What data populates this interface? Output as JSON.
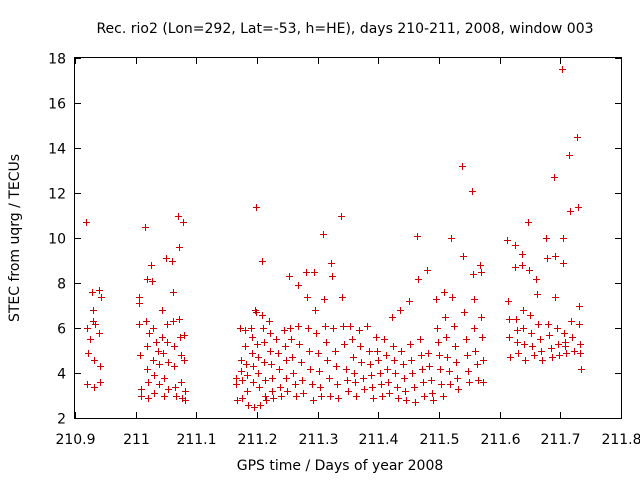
{
  "chart_data": {
    "type": "scatter",
    "title": "Rec. rio2 (Lon=292, Lat=-53, h=HE), days 210-211, 2008, window 003",
    "xlabel": "GPS time / Days of year 2008",
    "ylabel": "STEC from uqrg / TECUs",
    "xlim": [
      210.9,
      211.8
    ],
    "ylim": [
      2,
      18
    ],
    "x_ticks": [
      "210.9",
      "211",
      "211.1",
      "211.2",
      "211.3",
      "211.4",
      "211.5",
      "211.6",
      "211.7",
      "211.8"
    ],
    "y_ticks": [
      "2",
      "4",
      "6",
      "8",
      "10",
      "12",
      "14",
      "16",
      "18"
    ],
    "marker": "+",
    "color": "#cc0000",
    "points": [
      [
        210.918,
        10.7
      ],
      [
        210.92,
        6.0
      ],
      [
        210.921,
        4.9
      ],
      [
        210.92,
        3.5
      ],
      [
        210.924,
        5.5
      ],
      [
        210.928,
        7.6
      ],
      [
        210.929,
        6.8
      ],
      [
        210.93,
        6.3
      ],
      [
        210.931,
        4.6
      ],
      [
        210.932,
        3.4
      ],
      [
        210.933,
        6.2
      ],
      [
        210.94,
        7.7
      ],
      [
        210.94,
        5.8
      ],
      [
        210.941,
        4.3
      ],
      [
        210.942,
        3.6
      ],
      [
        210.943,
        7.4
      ],
      [
        211.005,
        7.4
      ],
      [
        211.006,
        6.2
      ],
      [
        211.007,
        4.8
      ],
      [
        211.008,
        3.3
      ],
      [
        211.009,
        3.0
      ],
      [
        211.006,
        7.1
      ],
      [
        211.016,
        10.5
      ],
      [
        211.018,
        8.2
      ],
      [
        211.017,
        6.3
      ],
      [
        211.018,
        5.2
      ],
      [
        211.019,
        4.2
      ],
      [
        211.02,
        3.6
      ],
      [
        211.021,
        2.9
      ],
      [
        211.022,
        5.8
      ],
      [
        211.026,
        8.8
      ],
      [
        211.027,
        8.1
      ],
      [
        211.028,
        6.0
      ],
      [
        211.029,
        4.6
      ],
      [
        211.03,
        3.9
      ],
      [
        211.031,
        3.1
      ],
      [
        211.033,
        5.4
      ],
      [
        211.036,
        5.0
      ],
      [
        211.038,
        4.4
      ],
      [
        211.039,
        3.5
      ],
      [
        211.043,
        6.8
      ],
      [
        211.044,
        5.6
      ],
      [
        211.045,
        4.9
      ],
      [
        211.046,
        3.8
      ],
      [
        211.047,
        3.0
      ],
      [
        211.05,
        9.1
      ],
      [
        211.051,
        6.2
      ],
      [
        211.052,
        5.4
      ],
      [
        211.053,
        4.5
      ],
      [
        211.054,
        3.3
      ],
      [
        211.06,
        9.0
      ],
      [
        211.061,
        7.6
      ],
      [
        211.062,
        6.3
      ],
      [
        211.063,
        5.2
      ],
      [
        211.064,
        4.3
      ],
      [
        211.065,
        3.4
      ],
      [
        211.066,
        3.0
      ],
      [
        211.07,
        11.0
      ],
      [
        211.071,
        9.6
      ],
      [
        211.072,
        6.4
      ],
      [
        211.073,
        5.6
      ],
      [
        211.074,
        4.8
      ],
      [
        211.075,
        3.6
      ],
      [
        211.076,
        2.9
      ],
      [
        211.078,
        10.7
      ],
      [
        211.079,
        5.7
      ],
      [
        211.08,
        4.6
      ],
      [
        211.081,
        3.2
      ],
      [
        211.082,
        2.8
      ],
      [
        211.165,
        3.8
      ],
      [
        211.166,
        3.5
      ],
      [
        211.167,
        2.8
      ],
      [
        211.172,
        6.0
      ],
      [
        211.173,
        4.6
      ],
      [
        211.174,
        4.1
      ],
      [
        211.175,
        3.7
      ],
      [
        211.176,
        2.9
      ],
      [
        211.18,
        5.9
      ],
      [
        211.181,
        5.2
      ],
      [
        211.182,
        4.4
      ],
      [
        211.183,
        3.9
      ],
      [
        211.184,
        3.2
      ],
      [
        211.185,
        2.6
      ],
      [
        211.19,
        6.0
      ],
      [
        211.191,
        5.6
      ],
      [
        211.192,
        4.9
      ],
      [
        211.193,
        4.3
      ],
      [
        211.194,
        3.6
      ],
      [
        211.195,
        2.5
      ],
      [
        211.196,
        6.8
      ],
      [
        211.198,
        11.4
      ],
      [
        211.199,
        6.7
      ],
      [
        211.2,
        5.3
      ],
      [
        211.201,
        4.7
      ],
      [
        211.202,
        4.0
      ],
      [
        211.203,
        3.4
      ],
      [
        211.205,
        2.6
      ],
      [
        211.208,
        9.0
      ],
      [
        211.209,
        6.6
      ],
      [
        211.21,
        6.0
      ],
      [
        211.211,
        5.4
      ],
      [
        211.212,
        4.5
      ],
      [
        211.213,
        3.7
      ],
      [
        211.214,
        3.0
      ],
      [
        211.215,
        2.8
      ],
      [
        211.22,
        6.3
      ],
      [
        211.221,
        5.8
      ],
      [
        211.222,
        5.0
      ],
      [
        211.223,
        4.4
      ],
      [
        211.224,
        3.8
      ],
      [
        211.225,
        3.2
      ],
      [
        211.226,
        2.9
      ],
      [
        211.232,
        5.5
      ],
      [
        211.234,
        4.9
      ],
      [
        211.236,
        4.2
      ],
      [
        211.238,
        3.4
      ],
      [
        211.24,
        3.0
      ],
      [
        211.245,
        5.9
      ],
      [
        211.246,
        5.2
      ],
      [
        211.247,
        4.6
      ],
      [
        211.248,
        3.8
      ],
      [
        211.249,
        3.2
      ],
      [
        211.252,
        8.3
      ],
      [
        211.254,
        6.0
      ],
      [
        211.256,
        5.5
      ],
      [
        211.258,
        4.7
      ],
      [
        211.26,
        4.0
      ],
      [
        211.262,
        3.5
      ],
      [
        211.264,
        3.0
      ],
      [
        211.267,
        7.9
      ],
      [
        211.268,
        6.1
      ],
      [
        211.27,
        5.3
      ],
      [
        211.272,
        4.5
      ],
      [
        211.274,
        3.7
      ],
      [
        211.276,
        3.1
      ],
      [
        211.28,
        8.5
      ],
      [
        211.282,
        7.4
      ],
      [
        211.284,
        6.0
      ],
      [
        211.286,
        5.0
      ],
      [
        211.288,
        4.2
      ],
      [
        211.29,
        3.5
      ],
      [
        211.292,
        2.8
      ],
      [
        211.294,
        8.5
      ],
      [
        211.296,
        6.8
      ],
      [
        211.298,
        5.8
      ],
      [
        211.3,
        4.9
      ],
      [
        211.302,
        4.1
      ],
      [
        211.304,
        3.4
      ],
      [
        211.305,
        3.0
      ],
      [
        211.308,
        10.2
      ],
      [
        211.31,
        7.3
      ],
      [
        211.312,
        6.1
      ],
      [
        211.314,
        5.4
      ],
      [
        211.316,
        4.6
      ],
      [
        211.318,
        3.8
      ],
      [
        211.32,
        3.0
      ],
      [
        211.322,
        8.9
      ],
      [
        211.324,
        8.3
      ],
      [
        211.326,
        6.0
      ],
      [
        211.328,
        5.0
      ],
      [
        211.33,
        4.3
      ],
      [
        211.332,
        3.5
      ],
      [
        211.334,
        2.9
      ],
      [
        211.338,
        11.0
      ],
      [
        211.34,
        7.4
      ],
      [
        211.342,
        6.1
      ],
      [
        211.344,
        5.3
      ],
      [
        211.346,
        4.2
      ],
      [
        211.348,
        3.7
      ],
      [
        211.35,
        3.2
      ],
      [
        211.354,
        6.1
      ],
      [
        211.356,
        5.5
      ],
      [
        211.358,
        4.7
      ],
      [
        211.36,
        4.0
      ],
      [
        211.362,
        3.6
      ],
      [
        211.364,
        3.0
      ],
      [
        211.368,
        5.9
      ],
      [
        211.37,
        5.2
      ],
      [
        211.372,
        4.5
      ],
      [
        211.374,
        3.8
      ],
      [
        211.376,
        3.3
      ],
      [
        211.382,
        6.1
      ],
      [
        211.384,
        5.0
      ],
      [
        211.386,
        4.4
      ],
      [
        211.388,
        3.9
      ],
      [
        211.39,
        3.4
      ],
      [
        211.392,
        2.9
      ],
      [
        211.396,
        5.6
      ],
      [
        211.398,
        5.0
      ],
      [
        211.4,
        4.6
      ],
      [
        211.402,
        4.0
      ],
      [
        211.404,
        3.5
      ],
      [
        211.406,
        3.0
      ],
      [
        211.41,
        5.5
      ],
      [
        211.412,
        4.8
      ],
      [
        211.414,
        4.2
      ],
      [
        211.416,
        3.6
      ],
      [
        211.418,
        3.1
      ],
      [
        211.422,
        6.5
      ],
      [
        211.424,
        5.2
      ],
      [
        211.426,
        4.6
      ],
      [
        211.428,
        4.0
      ],
      [
        211.43,
        3.4
      ],
      [
        211.432,
        2.9
      ],
      [
        211.436,
        6.8
      ],
      [
        211.438,
        5.0
      ],
      [
        211.44,
        4.4
      ],
      [
        211.442,
        3.8
      ],
      [
        211.444,
        3.2
      ],
      [
        211.446,
        2.8
      ],
      [
        211.45,
        7.2
      ],
      [
        211.452,
        5.3
      ],
      [
        211.454,
        4.6
      ],
      [
        211.456,
        4.0
      ],
      [
        211.458,
        3.4
      ],
      [
        211.46,
        2.7
      ],
      [
        211.464,
        10.1
      ],
      [
        211.466,
        8.2
      ],
      [
        211.468,
        5.5
      ],
      [
        211.47,
        4.8
      ],
      [
        211.472,
        4.2
      ],
      [
        211.474,
        3.6
      ],
      [
        211.476,
        3.0
      ],
      [
        211.48,
        8.6
      ],
      [
        211.482,
        4.9
      ],
      [
        211.484,
        4.3
      ],
      [
        211.486,
        3.7
      ],
      [
        211.488,
        3.1
      ],
      [
        211.49,
        2.8
      ],
      [
        211.495,
        7.3
      ],
      [
        211.496,
        6.0
      ],
      [
        211.498,
        5.4
      ],
      [
        211.5,
        4.8
      ],
      [
        211.502,
        4.2
      ],
      [
        211.504,
        3.5
      ],
      [
        211.506,
        3.0
      ],
      [
        211.508,
        7.6
      ],
      [
        211.51,
        6.5
      ],
      [
        211.512,
        5.6
      ],
      [
        211.514,
        4.7
      ],
      [
        211.516,
        4.1
      ],
      [
        211.518,
        3.5
      ],
      [
        211.52,
        10.0
      ],
      [
        211.522,
        7.4
      ],
      [
        211.524,
        6.1
      ],
      [
        211.526,
        5.2
      ],
      [
        211.528,
        4.5
      ],
      [
        211.53,
        3.8
      ],
      [
        211.532,
        3.3
      ],
      [
        211.538,
        13.2
      ],
      [
        211.54,
        9.2
      ],
      [
        211.542,
        6.7
      ],
      [
        211.544,
        5.5
      ],
      [
        211.546,
        4.8
      ],
      [
        211.548,
        4.1
      ],
      [
        211.55,
        3.6
      ],
      [
        211.555,
        12.1
      ],
      [
        211.556,
        8.4
      ],
      [
        211.557,
        7.3
      ],
      [
        211.558,
        6.0
      ],
      [
        211.56,
        5.0
      ],
      [
        211.562,
        4.4
      ],
      [
        211.564,
        3.7
      ],
      [
        211.568,
        8.8
      ],
      [
        211.569,
        8.5
      ],
      [
        211.57,
        6.5
      ],
      [
        211.571,
        5.6
      ],
      [
        211.572,
        4.6
      ],
      [
        211.573,
        3.6
      ],
      [
        211.612,
        9.9
      ],
      [
        211.614,
        7.2
      ],
      [
        211.615,
        6.4
      ],
      [
        211.616,
        5.6
      ],
      [
        211.617,
        4.7
      ],
      [
        211.625,
        9.7
      ],
      [
        211.626,
        8.7
      ],
      [
        211.627,
        6.4
      ],
      [
        211.628,
        5.9
      ],
      [
        211.629,
        5.4
      ],
      [
        211.63,
        4.9
      ],
      [
        211.636,
        9.3
      ],
      [
        211.637,
        8.8
      ],
      [
        211.638,
        6.8
      ],
      [
        211.639,
        6.0
      ],
      [
        211.64,
        5.3
      ],
      [
        211.641,
        4.6
      ],
      [
        211.646,
        10.7
      ],
      [
        211.648,
        8.6
      ],
      [
        211.65,
        6.6
      ],
      [
        211.652,
        5.8
      ],
      [
        211.654,
        5.2
      ],
      [
        211.656,
        4.8
      ],
      [
        211.66,
        8.2
      ],
      [
        211.662,
        7.5
      ],
      [
        211.664,
        6.2
      ],
      [
        211.666,
        5.5
      ],
      [
        211.668,
        5.0
      ],
      [
        211.67,
        4.6
      ],
      [
        211.676,
        10.0
      ],
      [
        211.678,
        9.1
      ],
      [
        211.68,
        6.2
      ],
      [
        211.682,
        5.7
      ],
      [
        211.684,
        5.1
      ],
      [
        211.686,
        4.7
      ],
      [
        211.69,
        12.7
      ],
      [
        211.691,
        9.2
      ],
      [
        211.692,
        7.4
      ],
      [
        211.694,
        6.0
      ],
      [
        211.696,
        5.3
      ],
      [
        211.698,
        4.8
      ],
      [
        211.703,
        17.5
      ],
      [
        211.704,
        10.0
      ],
      [
        211.705,
        8.9
      ],
      [
        211.706,
        5.8
      ],
      [
        211.707,
        5.4
      ],
      [
        211.708,
        5.2
      ],
      [
        211.709,
        4.9
      ],
      [
        211.715,
        13.7
      ],
      [
        211.716,
        11.2
      ],
      [
        211.718,
        6.3
      ],
      [
        211.72,
        5.6
      ],
      [
        211.722,
        5.0
      ],
      [
        211.728,
        14.5
      ],
      [
        211.729,
        11.4
      ],
      [
        211.73,
        7.0
      ],
      [
        211.731,
        6.2
      ],
      [
        211.732,
        5.3
      ],
      [
        211.733,
        4.9
      ],
      [
        211.734,
        4.2
      ]
    ]
  }
}
